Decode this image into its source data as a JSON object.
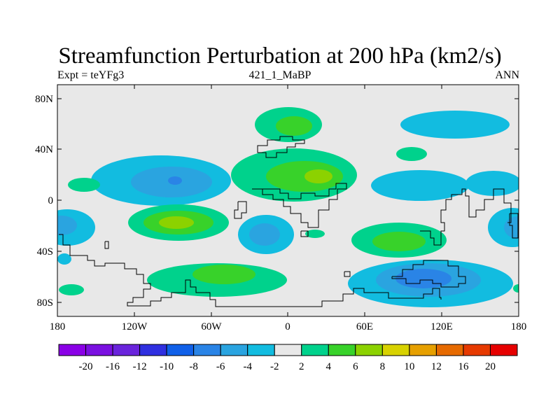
{
  "title": "Streamfunction Perturbation at 200 hPa (km2/s)",
  "subtitle": {
    "left": "Expt = teYFg3",
    "center": "421_1_MaBP",
    "right": "ANN"
  },
  "axes": {
    "lat_ticks": [
      "80N",
      "40N",
      "0",
      "40S",
      "80S"
    ],
    "lon_ticks": [
      "180",
      "120W",
      "60W",
      "0",
      "60E",
      "120E",
      "180"
    ]
  },
  "colorbar": {
    "labels": [
      "-20",
      "-16",
      "-12",
      "-10",
      "-8",
      "-6",
      "-4",
      "-2",
      "2",
      "4",
      "6",
      "8",
      "10",
      "12",
      "16",
      "20"
    ],
    "colors": [
      "#8a00e6",
      "#7a10e0",
      "#6a24dc",
      "#3030e0",
      "#1060e8",
      "#2a84e6",
      "#2aa4e0",
      "#12bce0",
      "#e8e8e8",
      "#00d28c",
      "#38d22a",
      "#8cd200",
      "#d8d200",
      "#e6a000",
      "#e66a00",
      "#e63a00",
      "#e60000"
    ]
  },
  "colors": {
    "background": "#e8e8e8",
    "coast": "#000000"
  }
}
